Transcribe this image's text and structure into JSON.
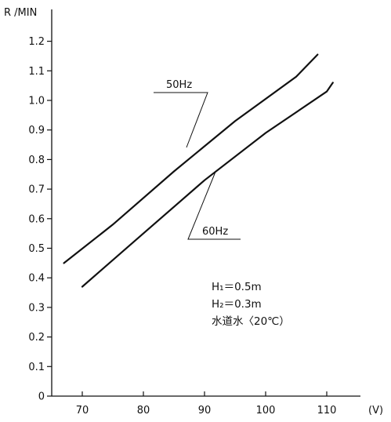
{
  "chart_data": {
    "type": "line",
    "title": "",
    "ylabel": "R /MIN",
    "xlabel": "(V)",
    "xlim": [
      65,
      115
    ],
    "ylim": [
      0,
      1.2
    ],
    "x_ticks": [
      70,
      80,
      90,
      100,
      110
    ],
    "y_ticks": [
      0,
      0.1,
      0.2,
      0.3,
      0.4,
      0.5,
      0.6,
      0.7,
      0.8,
      0.9,
      1.0,
      1.1,
      1.2
    ],
    "y_tick_labels": [
      "0",
      "0.1",
      "0.2",
      "0.3",
      "0.4",
      "0.5",
      "0.6",
      "0.7",
      "0.8",
      "0.9",
      "1.0",
      "1.1",
      "1.2"
    ],
    "grid": false,
    "series": [
      {
        "name": "50Hz",
        "x": [
          67,
          75,
          85,
          95,
          105,
          108.5
        ],
        "y": [
          0.45,
          0.58,
          0.76,
          0.93,
          1.08,
          1.155
        ]
      },
      {
        "name": "60Hz",
        "x": [
          70,
          80,
          90,
          100,
          110,
          111
        ],
        "y": [
          0.37,
          0.55,
          0.73,
          0.89,
          1.03,
          1.06
        ]
      }
    ],
    "annotations": [
      "H₁＝0.5m",
      "H₂＝0.3m",
      "水道水〈20℃）"
    ]
  }
}
